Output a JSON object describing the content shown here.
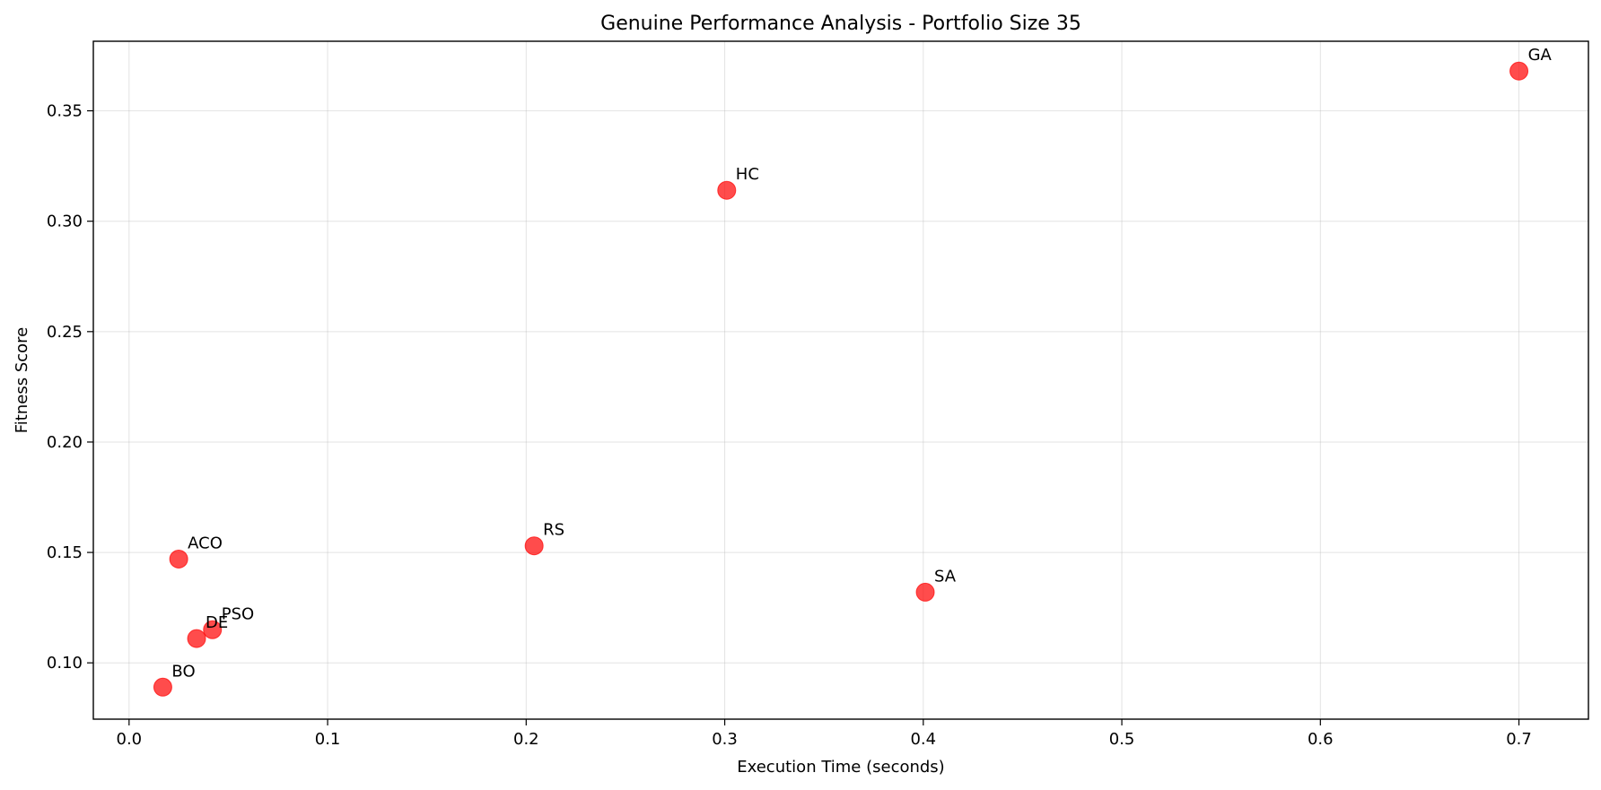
{
  "chart_data": {
    "type": "scatter",
    "title": "Genuine Performance Analysis - Portfolio Size 35",
    "xlabel": "Execution Time (seconds)",
    "ylabel": "Fitness Score",
    "xlim": [
      -0.018,
      0.735
    ],
    "ylim": [
      0.0745,
      0.3815
    ],
    "xticks": [
      0.0,
      0.1,
      0.2,
      0.3,
      0.4,
      0.5,
      0.6,
      0.7
    ],
    "yticks": [
      0.1,
      0.15,
      0.2,
      0.25,
      0.3,
      0.35
    ],
    "grid": true,
    "marker_color": "#ff0000",
    "points": [
      {
        "label": "GA",
        "x": 0.7,
        "y": 0.368
      },
      {
        "label": "HC",
        "x": 0.301,
        "y": 0.314
      },
      {
        "label": "RS",
        "x": 0.204,
        "y": 0.153
      },
      {
        "label": "ACO",
        "x": 0.025,
        "y": 0.147
      },
      {
        "label": "SA",
        "x": 0.401,
        "y": 0.132
      },
      {
        "label": "PSO",
        "x": 0.042,
        "y": 0.115
      },
      {
        "label": "DE",
        "x": 0.034,
        "y": 0.111
      },
      {
        "label": "BO",
        "x": 0.017,
        "y": 0.089
      }
    ]
  }
}
